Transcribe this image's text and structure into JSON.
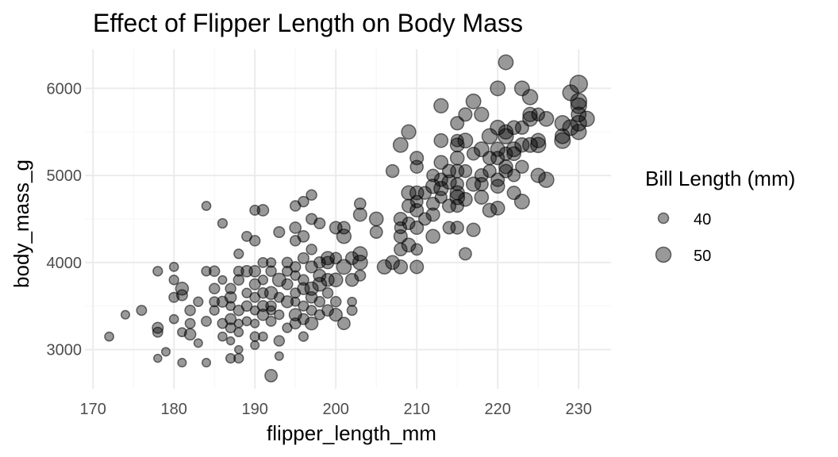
{
  "chart_data": {
    "type": "scatter",
    "title": "Effect of Flipper Length on Body Mass",
    "xlabel": "flipper_length_mm",
    "ylabel": "body_mass_g",
    "xlim": [
      169,
      234
    ],
    "ylim": [
      2550,
      6450
    ],
    "x_ticks": [
      170,
      180,
      190,
      200,
      210,
      220,
      230
    ],
    "y_ticks": [
      3000,
      4000,
      5000,
      6000
    ],
    "grid": true,
    "legend": {
      "title": "Bill Length (mm)",
      "position": "right",
      "entries": [
        {
          "label": "40",
          "size": 40
        },
        {
          "label": "50",
          "size": 50
        }
      ]
    },
    "point_color": "#000000",
    "point_opacity": 0.4,
    "size_mapping": "bill_length_mm",
    "points": [
      [
        172,
        3150,
        37
      ],
      [
        174,
        3400,
        36
      ],
      [
        176,
        3450,
        39
      ],
      [
        178,
        3250,
        41
      ],
      [
        178,
        3200,
        39
      ],
      [
        178,
        3900,
        38
      ],
      [
        178,
        2900,
        35
      ],
      [
        179,
        2975,
        36
      ],
      [
        180,
        3800,
        38
      ],
      [
        180,
        3950,
        37
      ],
      [
        180,
        3600,
        39
      ],
      [
        180,
        3350,
        37
      ],
      [
        181,
        3700,
        45
      ],
      [
        181,
        3625,
        41
      ],
      [
        181,
        2850,
        36
      ],
      [
        181,
        3200,
        37
      ],
      [
        182,
        3300,
        39
      ],
      [
        182,
        3175,
        42
      ],
      [
        182,
        3450,
        40
      ],
      [
        183,
        3550,
        38
      ],
      [
        183,
        3075,
        36
      ],
      [
        184,
        4650,
        37
      ],
      [
        184,
        3900,
        38
      ],
      [
        184,
        3325,
        39
      ],
      [
        184,
        2850,
        36
      ],
      [
        185,
        3700,
        40
      ],
      [
        185,
        3550,
        39
      ],
      [
        185,
        3450,
        38
      ],
      [
        185,
        3900,
        40
      ],
      [
        186,
        3150,
        37
      ],
      [
        186,
        3550,
        41
      ],
      [
        186,
        4450,
        38
      ],
      [
        186,
        3300,
        39
      ],
      [
        186,
        3800,
        36
      ],
      [
        187,
        2900,
        38
      ],
      [
        187,
        3350,
        41
      ],
      [
        187,
        3700,
        40
      ],
      [
        187,
        3600,
        42
      ],
      [
        187,
        3500,
        37
      ],
      [
        187,
        3100,
        35
      ],
      [
        187,
        3250,
        39
      ],
      [
        188,
        3200,
        37
      ],
      [
        188,
        3900,
        39
      ],
      [
        188,
        3300,
        36
      ],
      [
        188,
        3800,
        40
      ],
      [
        188,
        4100,
        38
      ],
      [
        188,
        3000,
        35
      ],
      [
        188,
        3450,
        40
      ],
      [
        188,
        2900,
        38
      ],
      [
        189,
        3900,
        42
      ],
      [
        189,
        3650,
        38
      ],
      [
        189,
        4300,
        39
      ],
      [
        189,
        3500,
        40
      ],
      [
        189,
        3325,
        37
      ],
      [
        190,
        3600,
        39
      ],
      [
        190,
        4250,
        40
      ],
      [
        190,
        3450,
        37
      ],
      [
        190,
        3750,
        41
      ],
      [
        190,
        3150,
        38
      ],
      [
        190,
        3900,
        42
      ],
      [
        190,
        3050,
        36
      ],
      [
        190,
        4600,
        39
      ],
      [
        190,
        3300,
        36
      ],
      [
        191,
        3650,
        40
      ],
      [
        191,
        3400,
        42
      ],
      [
        191,
        3800,
        38
      ],
      [
        191,
        4000,
        39
      ],
      [
        191,
        4600,
        42
      ],
      [
        191,
        3500,
        41
      ],
      [
        191,
        3150,
        37
      ],
      [
        192,
        3500,
        40
      ],
      [
        192,
        3325,
        39
      ],
      [
        192,
        4000,
        38
      ],
      [
        192,
        3650,
        45
      ],
      [
        192,
        3900,
        40
      ],
      [
        192,
        2700,
        44
      ],
      [
        192,
        3450,
        37
      ],
      [
        193,
        3600,
        39
      ],
      [
        193,
        3800,
        46
      ],
      [
        193,
        4350,
        41
      ],
      [
        193,
        3400,
        38
      ],
      [
        193,
        3100,
        40
      ],
      [
        193,
        2925,
        36
      ],
      [
        194,
        3750,
        41
      ],
      [
        194,
        4000,
        40
      ],
      [
        194,
        3550,
        43
      ],
      [
        194,
        3250,
        38
      ],
      [
        194,
        3900,
        39
      ],
      [
        195,
        4250,
        40
      ],
      [
        195,
        3650,
        39
      ],
      [
        195,
        3300,
        41
      ],
      [
        195,
        3850,
        38
      ],
      [
        195,
        4650,
        40
      ],
      [
        195,
        4400,
        42
      ],
      [
        195,
        3400,
        44
      ],
      [
        195,
        3550,
        37
      ],
      [
        195,
        3950,
        40
      ],
      [
        196,
        3700,
        43
      ],
      [
        196,
        4050,
        41
      ],
      [
        196,
        3500,
        39
      ],
      [
        196,
        4300,
        42
      ],
      [
        196,
        3800,
        40
      ],
      [
        196,
        3150,
        38
      ],
      [
        196,
        4700,
        40
      ],
      [
        196,
        3350,
        41
      ],
      [
        197,
        3600,
        42
      ],
      [
        197,
        4150,
        40
      ],
      [
        197,
        3700,
        46
      ],
      [
        197,
        3300,
        45
      ],
      [
        197,
        3950,
        43
      ],
      [
        197,
        4500,
        41
      ],
      [
        197,
        4775,
        40
      ],
      [
        197,
        3450,
        39
      ],
      [
        198,
        3750,
        47
      ],
      [
        198,
        3550,
        40
      ],
      [
        198,
        4000,
        42
      ],
      [
        198,
        3400,
        39
      ],
      [
        198,
        4450,
        41
      ],
      [
        198,
        3850,
        44
      ],
      [
        199,
        4050,
        46
      ],
      [
        199,
        3800,
        45
      ],
      [
        199,
        3450,
        42
      ],
      [
        199,
        4000,
        44
      ],
      [
        199,
        3650,
        40
      ],
      [
        200,
        3800,
        47
      ],
      [
        200,
        3400,
        45
      ],
      [
        200,
        4400,
        44
      ],
      [
        200,
        4050,
        42
      ],
      [
        200,
        3550,
        40
      ],
      [
        201,
        3950,
        49
      ],
      [
        201,
        4300,
        48
      ],
      [
        201,
        3300,
        44
      ],
      [
        201,
        4400,
        44
      ],
      [
        202,
        3800,
        45
      ],
      [
        202,
        4050,
        45
      ],
      [
        202,
        3450,
        39
      ],
      [
        202,
        3550,
        37
      ],
      [
        203,
        4100,
        48
      ],
      [
        203,
        4675,
        42
      ],
      [
        203,
        3850,
        41
      ],
      [
        203,
        4550,
        46
      ],
      [
        203,
        4000,
        49
      ],
      [
        205,
        4500,
        47
      ],
      [
        205,
        4350,
        44
      ],
      [
        206,
        3950,
        48
      ],
      [
        207,
        5050,
        45
      ],
      [
        207,
        4000,
        47
      ],
      [
        208,
        4300,
        46
      ],
      [
        208,
        3950,
        47
      ],
      [
        208,
        4500,
        46
      ],
      [
        208,
        5350,
        49
      ],
      [
        208,
        4150,
        45
      ],
      [
        208,
        4400,
        43
      ],
      [
        209,
        4800,
        48
      ],
      [
        209,
        5500,
        48
      ],
      [
        209,
        4200,
        47
      ],
      [
        209,
        4450,
        44
      ],
      [
        209,
        4650,
        46
      ],
      [
        210,
        4800,
        47
      ],
      [
        210,
        5200,
        46
      ],
      [
        210,
        4700,
        44
      ],
      [
        210,
        5100,
        45
      ],
      [
        210,
        4400,
        46
      ],
      [
        210,
        4150,
        42
      ],
      [
        210,
        3950,
        46
      ],
      [
        210,
        4600,
        46
      ],
      [
        211,
        4800,
        45
      ],
      [
        211,
        4500,
        44
      ],
      [
        212,
        4875,
        48
      ],
      [
        212,
        4550,
        46
      ],
      [
        212,
        4300,
        47
      ],
      [
        212,
        5000,
        44
      ],
      [
        212,
        4675,
        45
      ],
      [
        213,
        5150,
        47
      ],
      [
        213,
        4950,
        46
      ],
      [
        213,
        4850,
        48
      ],
      [
        213,
        5400,
        47
      ],
      [
        213,
        4750,
        43
      ],
      [
        213,
        5800,
        48
      ],
      [
        214,
        5050,
        46
      ],
      [
        214,
        4650,
        46
      ],
      [
        214,
        4400,
        44
      ],
      [
        214,
        4925,
        48
      ],
      [
        215,
        4750,
        49
      ],
      [
        215,
        5050,
        46
      ],
      [
        215,
        5600,
        46
      ],
      [
        215,
        4900,
        45
      ],
      [
        215,
        5200,
        47
      ],
      [
        215,
        4400,
        45
      ],
      [
        215,
        5350,
        47
      ],
      [
        215,
        5400,
        44
      ],
      [
        215,
        4800,
        48
      ],
      [
        215,
        4650,
        45
      ],
      [
        216,
        5700,
        46
      ],
      [
        216,
        5050,
        45
      ],
      [
        216,
        4725,
        47
      ],
      [
        216,
        5400,
        49
      ],
      [
        216,
        4100,
        44
      ],
      [
        217,
        4900,
        48
      ],
      [
        217,
        5850,
        49
      ],
      [
        217,
        4375,
        46
      ],
      [
        217,
        5250,
        45
      ],
      [
        218,
        5700,
        48
      ],
      [
        218,
        5300,
        49
      ],
      [
        218,
        4900,
        46
      ],
      [
        218,
        4750,
        47
      ],
      [
        218,
        5000,
        46
      ],
      [
        219,
        4600,
        47
      ],
      [
        219,
        5200,
        46
      ],
      [
        219,
        5050,
        45
      ],
      [
        219,
        5450,
        50
      ],
      [
        220,
        5550,
        49
      ],
      [
        220,
        6000,
        49
      ],
      [
        220,
        5300,
        48
      ],
      [
        220,
        5200,
        46
      ],
      [
        220,
        4875,
        47
      ],
      [
        220,
        4950,
        46
      ],
      [
        220,
        4625,
        47
      ],
      [
        221,
        5450,
        50
      ],
      [
        221,
        5100,
        47
      ],
      [
        221,
        6300,
        49
      ],
      [
        221,
        5050,
        46
      ],
      [
        221,
        5250,
        46
      ],
      [
        221,
        5500,
        48
      ],
      [
        222,
        5300,
        49
      ],
      [
        222,
        5250,
        47
      ],
      [
        222,
        5000,
        44
      ],
      [
        222,
        4800,
        46
      ],
      [
        222,
        5550,
        47
      ],
      [
        223,
        5550,
        46
      ],
      [
        223,
        6000,
        49
      ],
      [
        223,
        5350,
        48
      ],
      [
        223,
        5100,
        45
      ],
      [
        223,
        4700,
        49
      ],
      [
        224,
        5700,
        48
      ],
      [
        224,
        5350,
        49
      ],
      [
        224,
        5900,
        50
      ],
      [
        224,
        5650,
        49
      ],
      [
        225,
        5350,
        50
      ],
      [
        225,
        5700,
        45
      ],
      [
        225,
        5000,
        48
      ],
      [
        225,
        5400,
        48
      ],
      [
        226,
        5650,
        49
      ],
      [
        226,
        4950,
        50
      ],
      [
        228,
        5600,
        50
      ],
      [
        228,
        5450,
        49
      ],
      [
        228,
        5400,
        51
      ],
      [
        229,
        5550,
        51
      ],
      [
        229,
        5950,
        51
      ],
      [
        230,
        6050,
        55
      ],
      [
        230,
        5800,
        51
      ],
      [
        230,
        5700,
        49
      ],
      [
        230,
        5500,
        50
      ],
      [
        230,
        5600,
        51
      ],
      [
        230,
        5850,
        52
      ],
      [
        231,
        5650,
        50
      ]
    ]
  }
}
